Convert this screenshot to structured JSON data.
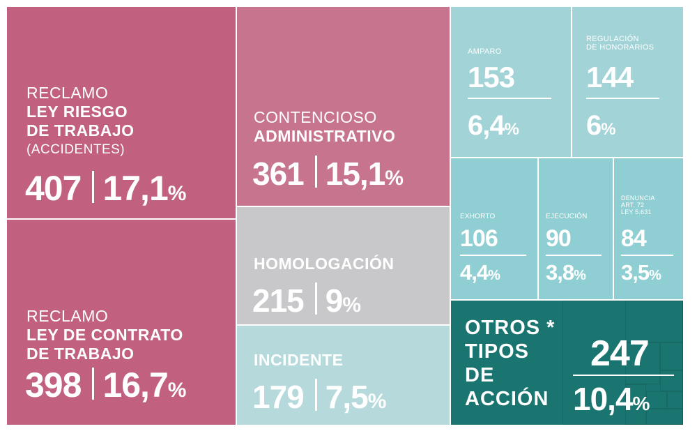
{
  "colors": {
    "pink": "#c1617f",
    "pink_light": "#c7748e",
    "gray": "#c8c7c9",
    "teal_pale": "#b6dadb",
    "teal_light": "#a2d3d7",
    "teal_mid": "#8fcfd3",
    "teal_dark": "#1a7570"
  },
  "chart_data": {
    "type": "treemap",
    "items": [
      {
        "label_lines": [
          "RECLAMO",
          "LEY RIESGO",
          "DE TRABAJO",
          "(ACCIDENTES)"
        ],
        "count": "407",
        "percent": "17,1"
      },
      {
        "label_lines": [
          "RECLAMO",
          "LEY DE CONTRATO",
          "DE TRABAJO"
        ],
        "count": "398",
        "percent": "16,7"
      },
      {
        "label_lines": [
          "CONTENCIOSO",
          "ADMINISTRATIVO"
        ],
        "count": "361",
        "percent": "15,1"
      },
      {
        "label_lines": [
          "HOMOLOGACIÓN"
        ],
        "count": "215",
        "percent": "9"
      },
      {
        "label_lines": [
          "INCIDENTE"
        ],
        "count": "179",
        "percent": "7,5"
      },
      {
        "label_lines": [
          "AMPARO"
        ],
        "count": "153",
        "percent": "6,4"
      },
      {
        "label_lines": [
          "REGULACIÓN",
          "DE HONORARIOS"
        ],
        "count": "144",
        "percent": "6"
      },
      {
        "label_lines": [
          "EXHORTO"
        ],
        "count": "106",
        "percent": "4,4"
      },
      {
        "label_lines": [
          "EJECUCIÓN"
        ],
        "count": "90",
        "percent": "3,8"
      },
      {
        "label_lines": [
          "DENUNCIA",
          "ART. 72",
          "LEY 5.631"
        ],
        "count": "84",
        "percent": "3,5"
      },
      {
        "label_lines": [
          "OTROS *",
          "TIPOS",
          "DE",
          "ACCIÓN"
        ],
        "count": "247",
        "percent": "10,4"
      }
    ],
    "percent_symbol": "%"
  }
}
